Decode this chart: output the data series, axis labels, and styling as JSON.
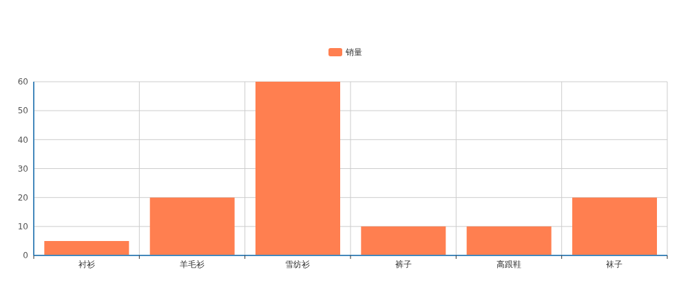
{
  "chart_data": {
    "type": "bar",
    "categories": [
      "衬衫",
      "羊毛衫",
      "雪纺衫",
      "裤子",
      "高跟鞋",
      "袜子"
    ],
    "series": [
      {
        "name": "销量",
        "color": "#ff7f50",
        "values": [
          5,
          20,
          60,
          10,
          10,
          20
        ]
      }
    ],
    "ylim": [
      0,
      60
    ],
    "yticks": [
      0,
      10,
      20,
      30,
      40,
      50,
      60
    ],
    "grid": true,
    "legend": "top"
  }
}
